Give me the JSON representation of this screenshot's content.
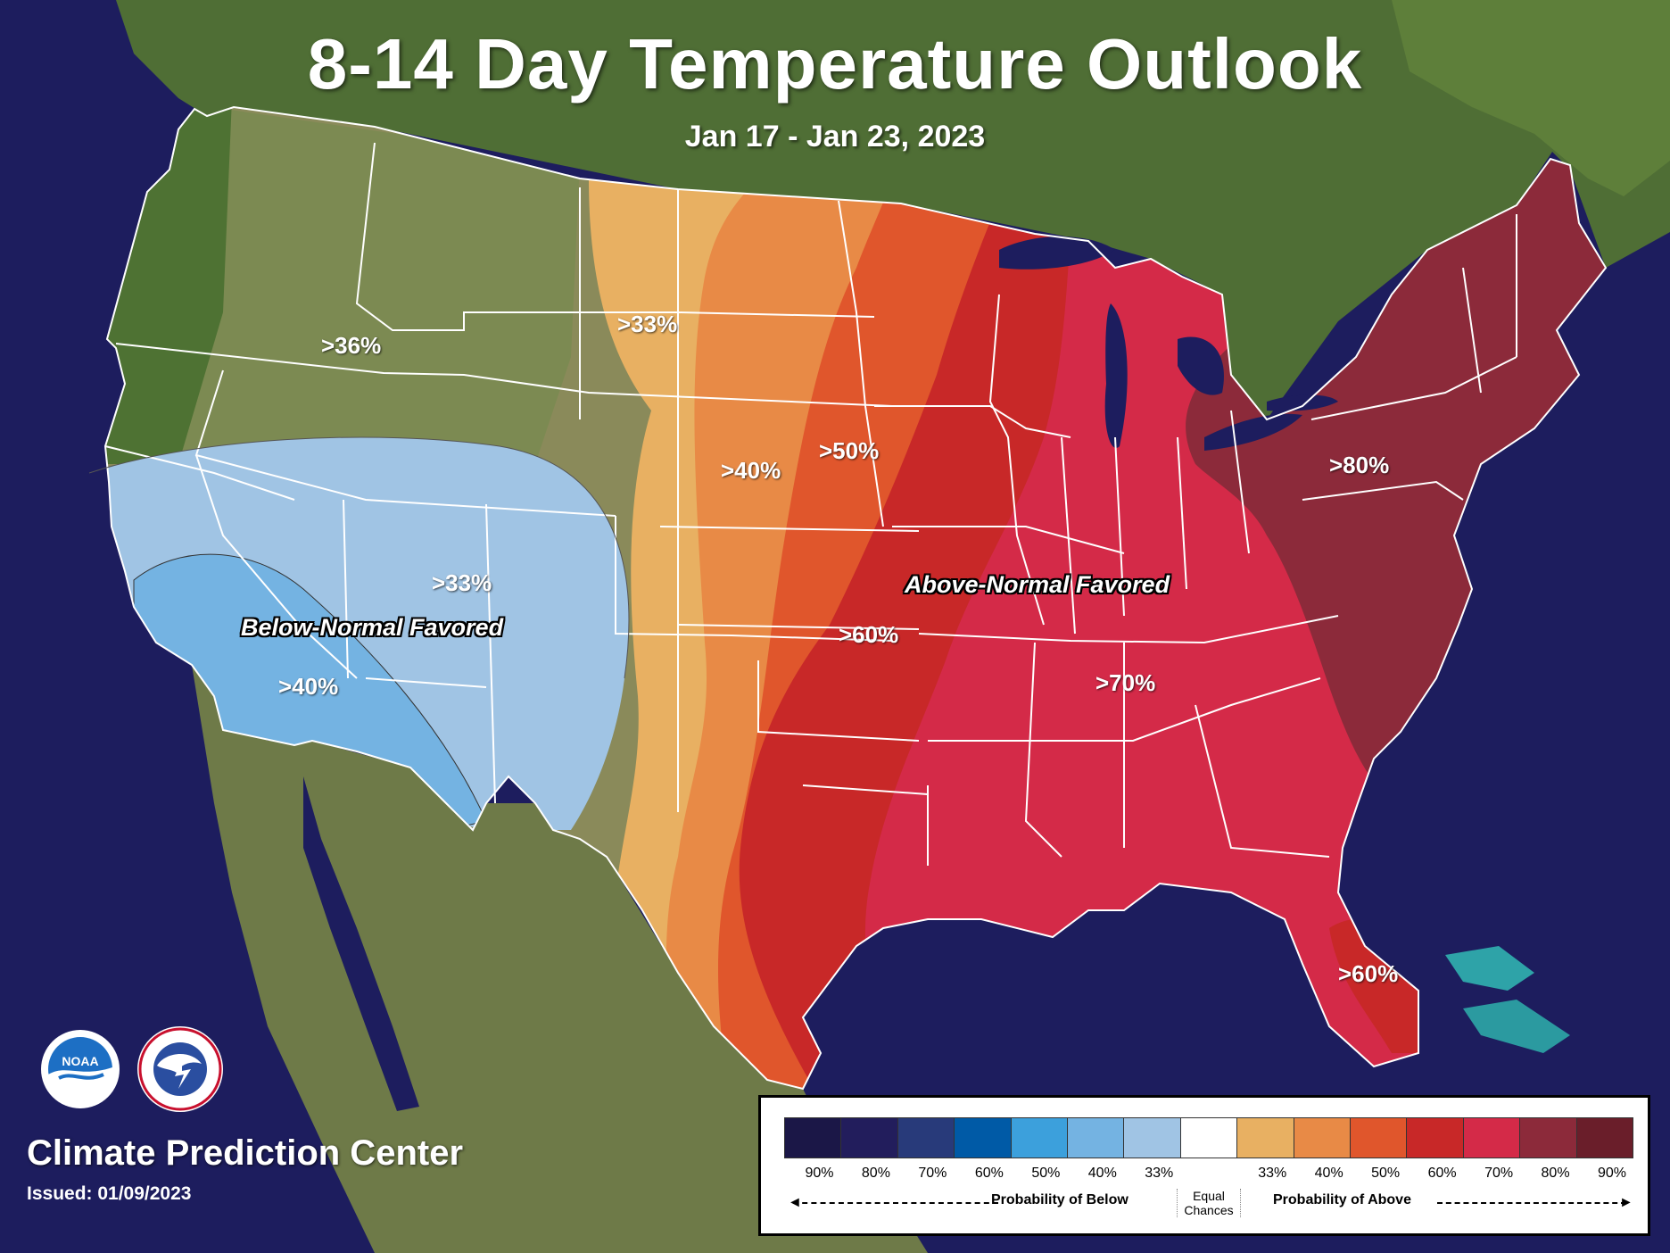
{
  "title": "8-14 Day Temperature Outlook",
  "subtitle": "Jan 17 - Jan 23, 2023",
  "region_labels": {
    "w36": ">36%",
    "n33": ">33%",
    "sw33": ">33%",
    "sw40": ">40%",
    "c40": ">40%",
    "c50": ">50%",
    "c60": ">60%",
    "se70": ">70%",
    "ne80": ">80%",
    "fl60": ">60%"
  },
  "favored_labels": {
    "below": "Below-Normal Favored",
    "above": "Above-Normal Favored"
  },
  "organization": "Climate Prediction Center",
  "issued": "Issued: 01/09/2023",
  "logos": {
    "noaa_text": "NOAA",
    "nws_icon": "nws-logo-icon"
  },
  "legend": {
    "colors": [
      "#1b1747",
      "#221d5c",
      "#283a7a",
      "#005aa6",
      "#3ca0dc",
      "#74b3e2",
      "#a0c4e4",
      "#ffffff",
      "#e8b062",
      "#e88a46",
      "#e0562c",
      "#c82828",
      "#d42a48",
      "#8c2a3a",
      "#6a1e2a"
    ],
    "labels": [
      "90%",
      "80%",
      "70%",
      "60%",
      "50%",
      "40%",
      "33%",
      "",
      "33%",
      "40%",
      "50%",
      "60%",
      "70%",
      "80%",
      "90%"
    ],
    "below_text": "Probability of Below",
    "above_text": "Probability of Above",
    "equal_line1": "Equal",
    "equal_line2": "Chances"
  },
  "colors": {
    "ocean": "#1d1d5e",
    "land": "#6b7a45",
    "below33": "#a0c4e4",
    "below40": "#74b3e2",
    "above33": "#e8b062",
    "above40": "#e88a46",
    "above50": "#e0562c",
    "above60": "#c82828",
    "above70": "#d42a48",
    "above80": "#8c2a3a"
  }
}
